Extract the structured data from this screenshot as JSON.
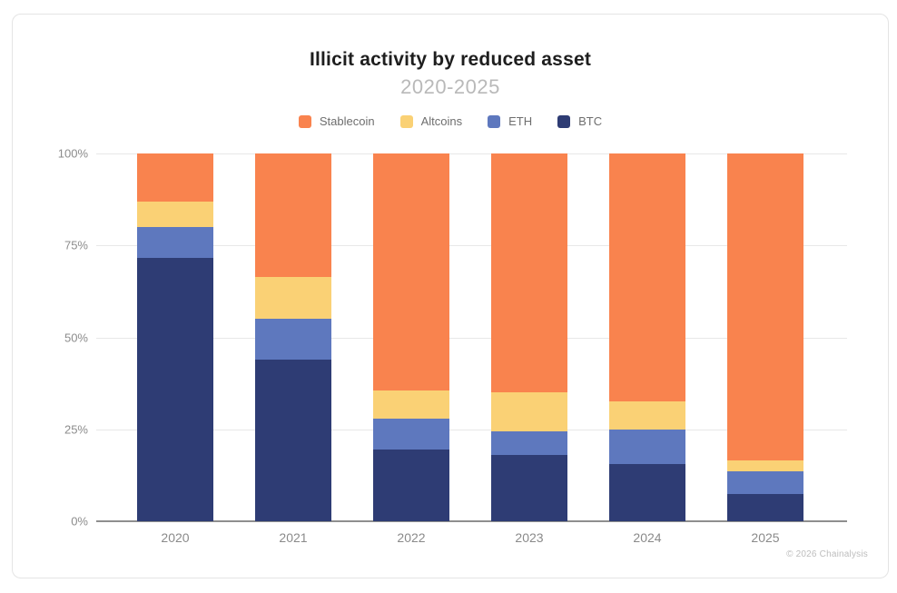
{
  "header": {
    "title": "Illicit activity by reduced asset",
    "subtitle": "2020-2025"
  },
  "attribution": "© 2026 Chainalysis",
  "chart_data": {
    "type": "bar",
    "stacked": true,
    "unit": "percent",
    "title": "Illicit activity by reduced asset",
    "subtitle": "2020-2025",
    "categories": [
      "2020",
      "2021",
      "2022",
      "2023",
      "2024",
      "2025"
    ],
    "series": [
      {
        "name": "Stablecoin",
        "color": "#F9834E",
        "values": [
          13,
          33.5,
          64.5,
          65,
          67.5,
          83.5
        ]
      },
      {
        "name": "Altcoins",
        "color": "#FAD175",
        "values": [
          7,
          11.5,
          7.5,
          10.5,
          7.5,
          3
        ]
      },
      {
        "name": "ETH",
        "color": "#5E78BE",
        "values": [
          8.5,
          11,
          8.5,
          6.5,
          9.5,
          6
        ]
      },
      {
        "name": "BTC",
        "color": "#2E3C74",
        "values": [
          71.5,
          44,
          19.5,
          18,
          15.5,
          7.5
        ]
      }
    ],
    "stack_order_bottom_to_top": [
      "BTC",
      "ETH",
      "Altcoins",
      "Stablecoin"
    ],
    "y_axis": {
      "ticks": [
        100,
        75,
        50,
        25,
        0
      ],
      "tick_suffix": "%",
      "range": [
        0,
        100
      ]
    },
    "x_axis": {
      "label": "",
      "ticks": [
        "2020",
        "2021",
        "2022",
        "2023",
        "2024",
        "2025"
      ]
    },
    "legend_position": "top",
    "grid": true,
    "attribution": "© 2026 Chainalysis"
  }
}
